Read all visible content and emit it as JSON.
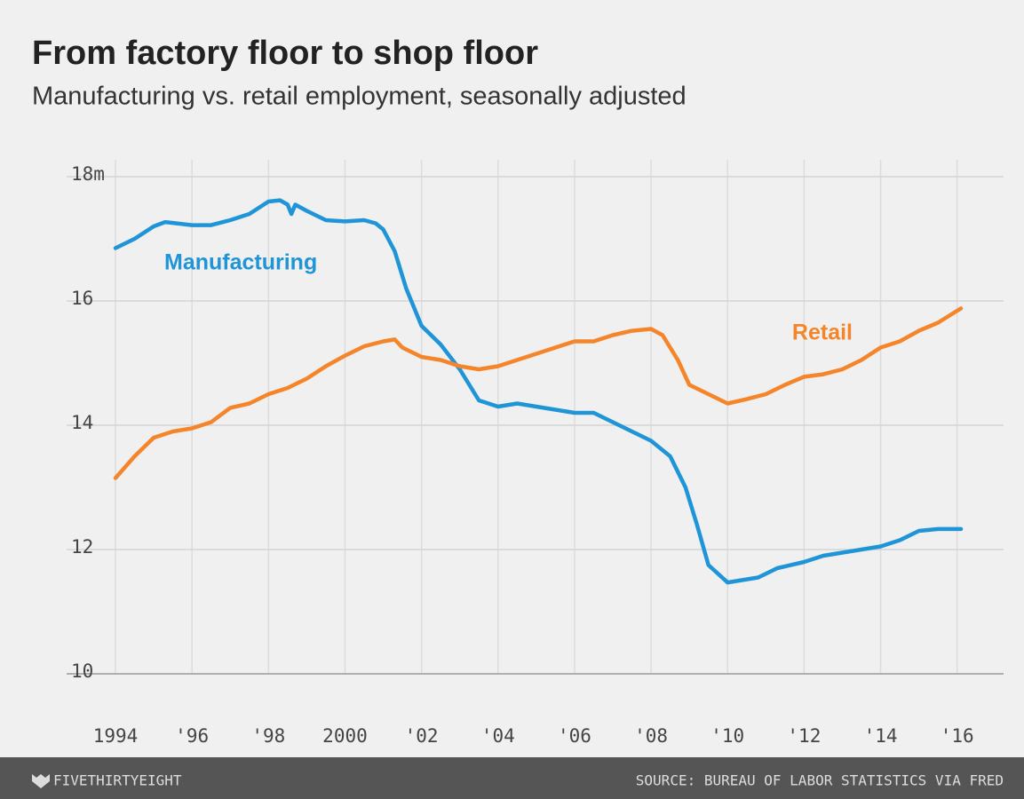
{
  "chart_data": {
    "type": "line",
    "title": "From factory floor to shop floor",
    "subtitle": "Manufacturing vs. retail employment, seasonally adjusted",
    "credit": "FIVETHIRTYEIGHT",
    "source": "SOURCE: BUREAU OF LABOR STATISTICS VIA FRED",
    "xlim": [
      1994,
      2016.1
    ],
    "xticks": [
      1994,
      {
        "value": 1996,
        "label": "'96"
      },
      {
        "value": 1998,
        "label": "'98"
      },
      2000,
      {
        "value": 2002,
        "label": "'02"
      },
      {
        "value": 2004,
        "label": "'04"
      },
      {
        "value": 2006,
        "label": "'06"
      },
      {
        "value": 2008,
        "label": "'08"
      },
      {
        "value": 2010,
        "label": "'10"
      },
      {
        "value": 2012,
        "label": "'12"
      },
      {
        "value": 2014,
        "label": "'14"
      },
      {
        "value": 2016,
        "label": "'16"
      }
    ],
    "ylim": [
      10,
      18
    ],
    "yticks": [
      10,
      12,
      14,
      16,
      {
        "value": 18,
        "label": "18m"
      }
    ],
    "grid": true,
    "series": [
      {
        "name": "Manufacturing",
        "color": "#1f95d8",
        "x": [
          1994,
          1994.5,
          1995,
          1995.3,
          1996,
          1996.5,
          1997,
          1997.5,
          1998,
          1998.3,
          1998.5,
          1998.6,
          1998.7,
          1999,
          1999.5,
          2000,
          2000.5,
          2000.8,
          2001,
          2001.3,
          2001.6,
          2002,
          2002.5,
          2003,
          2003.5,
          2004,
          2004.5,
          2005,
          2005.5,
          2006,
          2006.5,
          2007,
          2007.5,
          2008,
          2008.5,
          2008.9,
          2009.2,
          2009.5,
          2010,
          2010.3,
          2010.8,
          2011.3,
          2012,
          2012.5,
          2013,
          2013.5,
          2014,
          2014.5,
          2015,
          2015.5,
          2016.1
        ],
        "values": [
          16.85,
          17.0,
          17.2,
          17.27,
          17.22,
          17.22,
          17.3,
          17.4,
          17.6,
          17.62,
          17.55,
          17.4,
          17.55,
          17.45,
          17.3,
          17.28,
          17.3,
          17.25,
          17.15,
          16.8,
          16.2,
          15.6,
          15.3,
          14.9,
          14.4,
          14.3,
          14.35,
          14.3,
          14.25,
          14.2,
          14.2,
          14.05,
          13.9,
          13.75,
          13.5,
          13.0,
          12.4,
          11.75,
          11.47,
          11.5,
          11.55,
          11.7,
          11.8,
          11.9,
          11.95,
          12.0,
          12.05,
          12.15,
          12.3,
          12.33,
          12.33
        ]
      },
      {
        "name": "Retail",
        "color": "#f5852a",
        "x": [
          1994,
          1994.5,
          1995,
          1995.5,
          1996,
          1996.5,
          1997,
          1997.5,
          1998,
          1998.5,
          1999,
          1999.5,
          2000,
          2000.5,
          2001,
          2001.3,
          2001.5,
          2002,
          2002.5,
          2003,
          2003.5,
          2004,
          2004.5,
          2005,
          2005.5,
          2006,
          2006.5,
          2007,
          2007.5,
          2008,
          2008.3,
          2008.7,
          2009,
          2009.5,
          2010,
          2010.5,
          2011,
          2011.5,
          2012,
          2012.5,
          2013,
          2013.5,
          2014,
          2014.5,
          2015,
          2015.5,
          2016.1
        ],
        "values": [
          13.15,
          13.5,
          13.8,
          13.9,
          13.95,
          14.05,
          14.28,
          14.35,
          14.5,
          14.6,
          14.75,
          14.95,
          15.12,
          15.27,
          15.35,
          15.38,
          15.25,
          15.1,
          15.05,
          14.95,
          14.9,
          14.95,
          15.05,
          15.15,
          15.25,
          15.35,
          15.35,
          15.45,
          15.52,
          15.55,
          15.45,
          15.05,
          14.65,
          14.5,
          14.35,
          14.42,
          14.5,
          14.65,
          14.78,
          14.82,
          14.9,
          15.05,
          15.25,
          15.35,
          15.52,
          15.65,
          15.88
        ]
      }
    ]
  }
}
